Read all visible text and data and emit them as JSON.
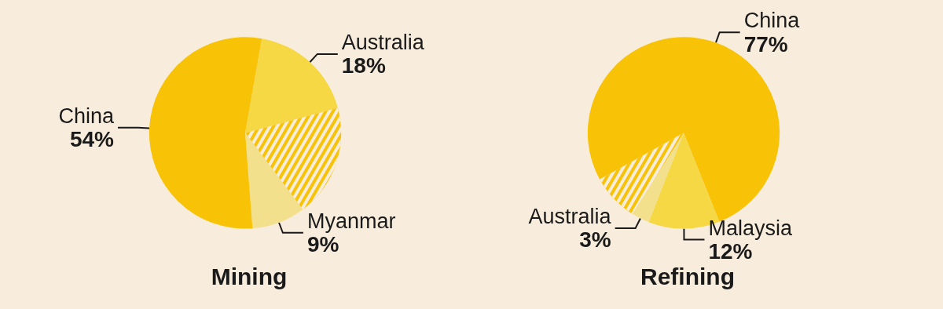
{
  "chart_data": [
    {
      "type": "pie",
      "title": "Mining",
      "categories": [
        "Australia",
        null,
        "Myanmar",
        "China"
      ],
      "values": [
        18,
        19,
        9,
        54
      ],
      "value_labels": [
        "18%",
        null,
        "9%",
        "54%"
      ],
      "colors": [
        "#f5d843",
        "#f8c307",
        "#f3e08c",
        "#f8c307"
      ]
    },
    {
      "type": "pie",
      "title": "Refining",
      "categories": [
        "China",
        "Malaysia",
        "Australia",
        null
      ],
      "values": [
        77,
        12,
        3,
        8
      ],
      "value_labels": [
        "77%",
        "12%",
        "3%",
        null
      ],
      "colors": [
        "#f8c307",
        "#f5d843",
        "#f3e08c",
        "#f8c307"
      ]
    }
  ]
}
